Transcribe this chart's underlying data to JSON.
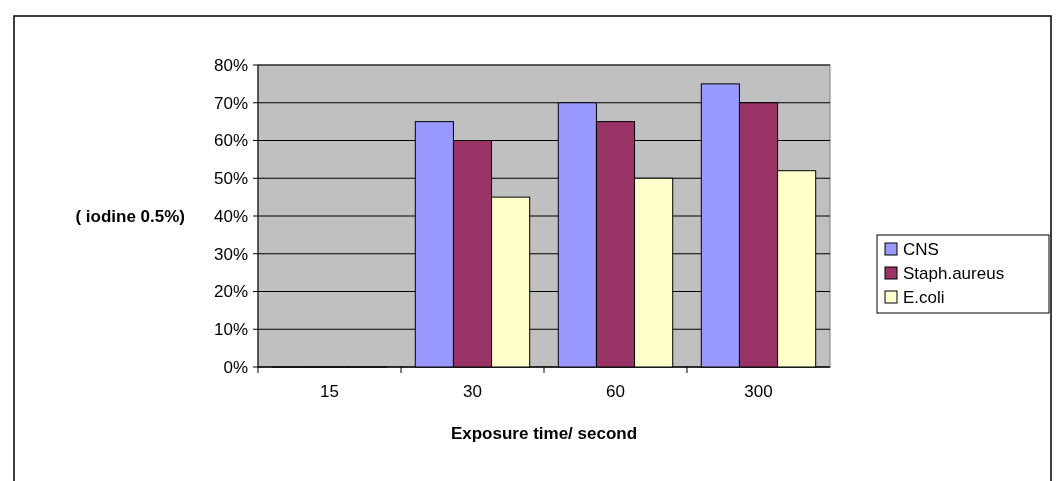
{
  "chart_data": {
    "type": "bar",
    "xlabel": "Exposure time/ second",
    "ylabel": "( iodine 0.5%)",
    "categories": [
      "15",
      "30",
      "60",
      "300"
    ],
    "series": [
      {
        "name": "CNS",
        "color": "#9999ff",
        "values": [
          0,
          65,
          70,
          75
        ]
      },
      {
        "name": "Staph.aureus",
        "color": "#993366",
        "values": [
          0,
          60,
          65,
          70
        ]
      },
      {
        "name": "E.coli",
        "color": "#ffffcc",
        "values": [
          0,
          45,
          50,
          52
        ]
      }
    ],
    "ylim": [
      0,
      80
    ],
    "yticks": [
      {
        "value": 0,
        "label": "0%"
      },
      {
        "value": 10,
        "label": "10%"
      },
      {
        "value": 20,
        "label": "20%"
      },
      {
        "value": 30,
        "label": "30%"
      },
      {
        "value": 40,
        "label": "40%"
      },
      {
        "value": 50,
        "label": "50%"
      },
      {
        "value": 60,
        "label": "60%"
      },
      {
        "value": 70,
        "label": "70%"
      },
      {
        "value": 80,
        "label": "80%"
      }
    ],
    "grid": "y",
    "legend": "right"
  }
}
